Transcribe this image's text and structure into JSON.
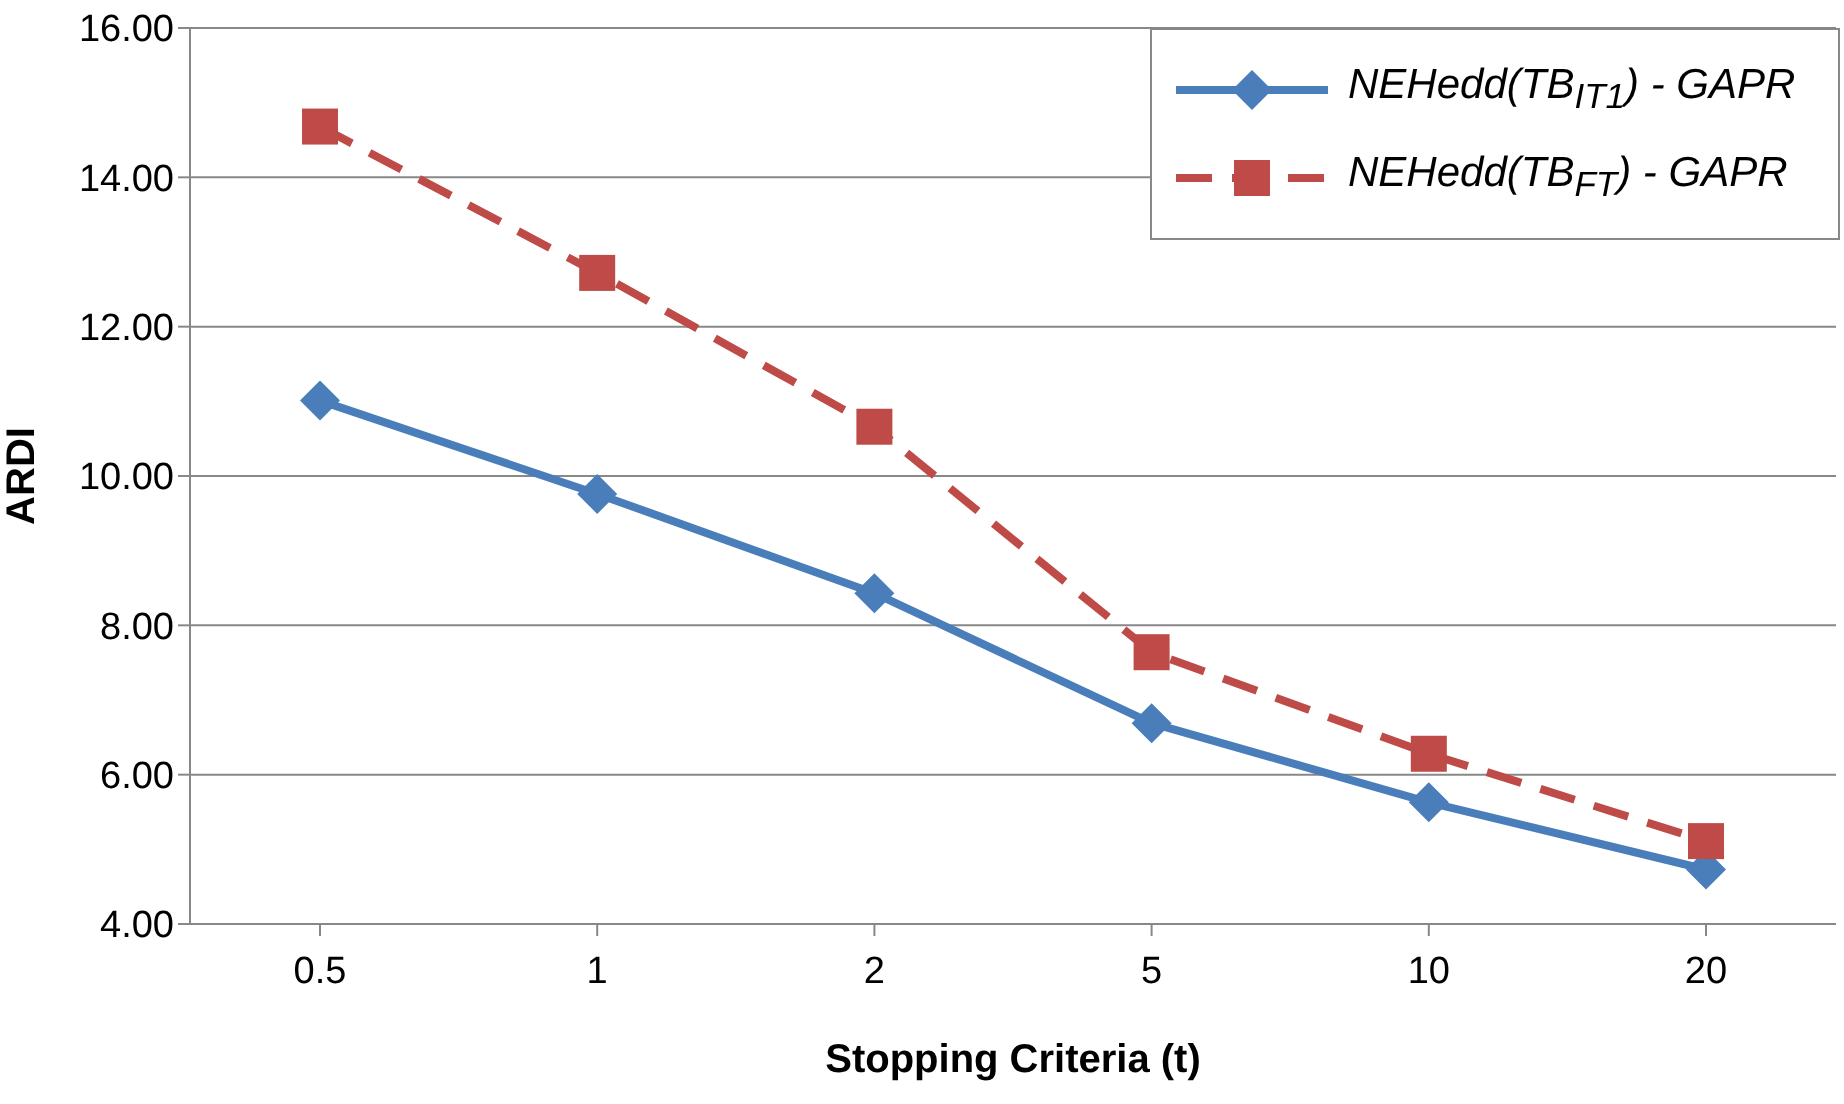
{
  "chart_data": {
    "type": "line",
    "xlabel": "Stopping Criteria (t)",
    "ylabel": "ARDI",
    "categories": [
      "0.5",
      "1",
      "2",
      "5",
      "10",
      "20"
    ],
    "series": [
      {
        "name": "NEHedd(TB$_{IT1}$) - GAPR",
        "color": "#4a7ebb",
        "marker": "diamond",
        "line_style": "solid",
        "values": [
          11.01,
          9.76,
          8.43,
          6.69,
          5.63,
          4.73
        ]
      },
      {
        "name": "NEHedd(TB$_{FT}$) - GAPR",
        "color": "#be4b48",
        "marker": "square",
        "line_style": "dashed",
        "values": [
          14.68,
          12.72,
          10.66,
          7.64,
          6.28,
          5.11
        ]
      }
    ],
    "ylim": [
      4,
      16
    ],
    "yticks": [
      {
        "value": 4,
        "label": "4.00"
      },
      {
        "value": 6,
        "label": "6.00"
      },
      {
        "value": 8,
        "label": "8.00"
      },
      {
        "value": 10,
        "label": "10.00"
      },
      {
        "value": 12,
        "label": "12.00"
      },
      {
        "value": 14,
        "label": "14.00"
      },
      {
        "value": 16,
        "label": "16.00"
      }
    ],
    "grid": "y",
    "legend": "top right"
  }
}
